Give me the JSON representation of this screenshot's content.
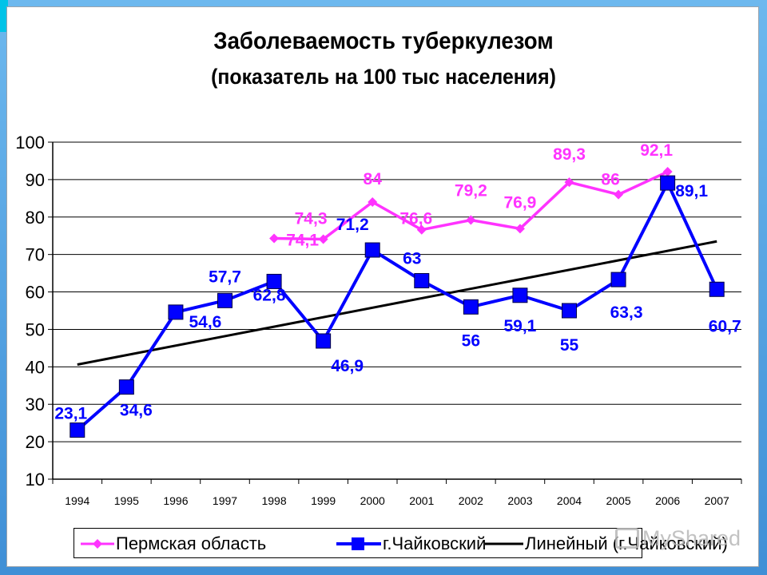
{
  "chart_data": {
    "type": "line",
    "title": "Заболеваемость туберкулезом",
    "subtitle": "(показатель на 100 тыс населения)",
    "categories": [
      "1994",
      "1995",
      "1996",
      "1997",
      "1998",
      "1999",
      "2000",
      "2001",
      "2002",
      "2003",
      "2004",
      "2005",
      "2006",
      "2007"
    ],
    "y_ticks": [
      "10",
      "20",
      "30",
      "40",
      "50",
      "60",
      "70",
      "80",
      "90",
      "100"
    ],
    "ylim": [
      10,
      100
    ],
    "grid": true,
    "legend_position": "bottom",
    "series": [
      {
        "name": "Пермская область",
        "color": "#ff33ff",
        "marker": "diamond",
        "values": [
          null,
          null,
          null,
          null,
          74.3,
          74.1,
          84,
          76.6,
          79.2,
          76.9,
          89.3,
          86,
          92.1,
          null
        ],
        "labels": [
          null,
          null,
          null,
          null,
          "74,3",
          "74,1",
          "84",
          "76,6",
          "79,2",
          "76,9",
          "89,3",
          "86",
          "92,1",
          null
        ]
      },
      {
        "name": "г.Чайковский",
        "color": "#0000ff",
        "marker": "square",
        "values": [
          23.1,
          34.6,
          54.6,
          57.7,
          62.8,
          46.9,
          71.2,
          63,
          56,
          59.1,
          55,
          63.3,
          89.1,
          60.7
        ],
        "labels": [
          "23,1",
          "34,6",
          "54,6",
          "57,7",
          "62,8",
          "46,9",
          "71,2",
          "63",
          "56",
          "59,1",
          "55",
          "63,3",
          "89,1",
          "60,7"
        ]
      },
      {
        "name": "Линейный (г.Чайковский)",
        "color": "#000000",
        "marker": "none",
        "trend_endpoints": [
          [
            1994,
            40.6
          ],
          [
            2007,
            73.5
          ]
        ]
      }
    ]
  },
  "watermark": {
    "icon": "presentation-icon",
    "text": "MyShared"
  }
}
